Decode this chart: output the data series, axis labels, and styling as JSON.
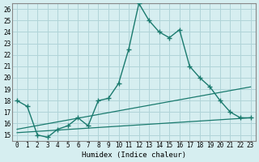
{
  "title": "",
  "xlabel": "Humidex (Indice chaleur)",
  "ylabel": "",
  "bg_color": "#d6eef0",
  "line_color": "#1a7a6e",
  "grid_color": "#b0d4d8",
  "xlim": [
    -0.5,
    23.5
  ],
  "ylim": [
    14.5,
    26.5
  ],
  "xticks": [
    0,
    1,
    2,
    3,
    4,
    5,
    6,
    7,
    8,
    9,
    10,
    11,
    12,
    13,
    14,
    15,
    16,
    17,
    18,
    19,
    20,
    21,
    22,
    23
  ],
  "yticks": [
    15,
    16,
    17,
    18,
    19,
    20,
    21,
    22,
    23,
    24,
    25,
    26
  ],
  "line1_x": [
    0,
    1,
    2,
    3,
    4,
    5,
    6,
    7,
    8,
    9,
    10,
    11,
    12,
    13,
    14,
    15,
    16,
    17,
    18,
    19,
    20,
    21,
    22,
    23
  ],
  "line1_y": [
    18.0,
    17.5,
    15.0,
    14.8,
    15.5,
    15.8,
    16.5,
    15.8,
    18.0,
    18.2,
    19.5,
    22.5,
    26.5,
    25.0,
    24.0,
    23.5,
    24.2,
    21.0,
    20.0,
    19.2,
    18.0,
    17.0,
    16.5,
    16.5
  ],
  "line2_x": [
    0,
    23
  ],
  "line2_y": [
    15.5,
    19.2
  ],
  "line3_x": [
    0,
    23
  ],
  "line3_y": [
    15.2,
    16.5
  ]
}
